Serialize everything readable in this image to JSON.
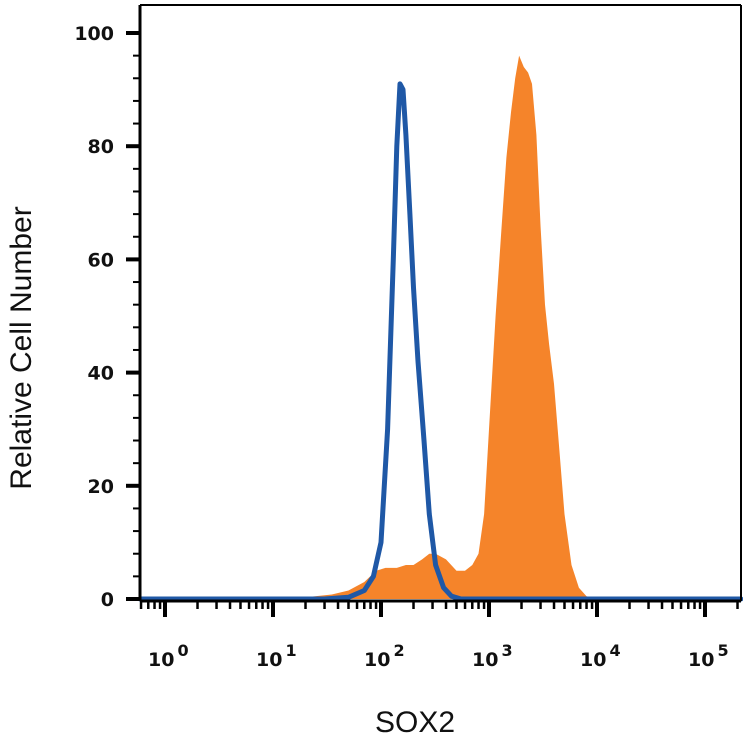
{
  "chart_data": {
    "type": "area",
    "xlabel": "SOX2",
    "ylabel": "Relative Cell Number",
    "x_scale": "log",
    "xlim": [
      0.4,
      250000
    ],
    "ylim": [
      0,
      100
    ],
    "y_ticks": [
      "0",
      "20",
      "40",
      "60",
      "80",
      "100"
    ],
    "y_tick_values": [
      0,
      20,
      40,
      60,
      80,
      100
    ],
    "x_ticks": [
      {
        "base": "10",
        "exp": "0",
        "value": 1
      },
      {
        "base": "10",
        "exp": "1",
        "value": 10
      },
      {
        "base": "10",
        "exp": "2",
        "value": 100
      },
      {
        "base": "10",
        "exp": "3",
        "value": 1000
      },
      {
        "base": "10",
        "exp": "4",
        "value": 10000
      },
      {
        "base": "10",
        "exp": "5",
        "value": 100000
      }
    ],
    "series": [
      {
        "style": "filled",
        "color": "#f5842a",
        "points": [
          [
            0.4,
            0
          ],
          [
            1,
            0
          ],
          [
            10,
            0
          ],
          [
            20,
            0.3
          ],
          [
            35,
            0.8
          ],
          [
            50,
            1.5
          ],
          [
            70,
            3
          ],
          [
            90,
            5
          ],
          [
            110,
            5.5
          ],
          [
            140,
            5.5
          ],
          [
            170,
            6
          ],
          [
            200,
            6
          ],
          [
            240,
            7
          ],
          [
            280,
            8
          ],
          [
            320,
            8
          ],
          [
            400,
            7
          ],
          [
            500,
            5
          ],
          [
            600,
            5
          ],
          [
            700,
            6
          ],
          [
            800,
            8
          ],
          [
            900,
            15
          ],
          [
            1000,
            30
          ],
          [
            1150,
            50
          ],
          [
            1300,
            65
          ],
          [
            1450,
            78
          ],
          [
            1600,
            86
          ],
          [
            1750,
            92
          ],
          [
            1900,
            96
          ],
          [
            2100,
            94
          ],
          [
            2300,
            93
          ],
          [
            2500,
            91
          ],
          [
            2750,
            82
          ],
          [
            3000,
            66
          ],
          [
            3300,
            52
          ],
          [
            3600,
            45
          ],
          [
            4000,
            38
          ],
          [
            4500,
            26
          ],
          [
            5000,
            15
          ],
          [
            5800,
            6
          ],
          [
            6800,
            2
          ],
          [
            8000,
            0.5
          ],
          [
            10000,
            0
          ],
          [
            100000,
            0
          ],
          [
            250000,
            0
          ]
        ]
      },
      {
        "style": "line",
        "color": "#1f58a6",
        "points": [
          [
            0.4,
            0
          ],
          [
            10,
            0
          ],
          [
            30,
            0
          ],
          [
            50,
            0.3
          ],
          [
            70,
            1.5
          ],
          [
            85,
            4
          ],
          [
            100,
            10
          ],
          [
            115,
            30
          ],
          [
            130,
            60
          ],
          [
            140,
            80
          ],
          [
            150,
            91
          ],
          [
            160,
            90
          ],
          [
            170,
            82
          ],
          [
            185,
            68
          ],
          [
            200,
            55
          ],
          [
            220,
            42
          ],
          [
            250,
            28
          ],
          [
            280,
            15
          ],
          [
            320,
            6
          ],
          [
            380,
            2
          ],
          [
            450,
            0.5
          ],
          [
            550,
            0
          ],
          [
            10000,
            0
          ],
          [
            250000,
            0
          ]
        ]
      }
    ]
  }
}
